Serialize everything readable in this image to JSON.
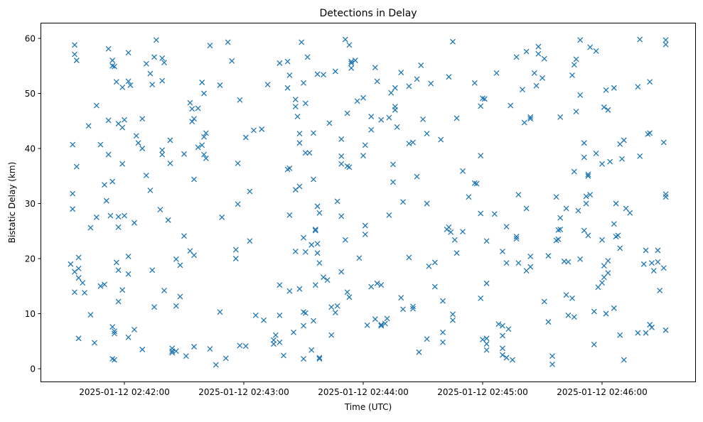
{
  "chart_data": {
    "type": "scatter",
    "title": "Detections in Delay",
    "xlabel": "Time (UTC)",
    "ylabel": "Bistatic Delay (km)",
    "x_units": "seconds relative to 2025-01-12 02:42:00",
    "xlim": [
      -42,
      287
    ],
    "ylim": [
      -2.5,
      62.5
    ],
    "grid": false,
    "marker": "x",
    "color": "#1f77b4",
    "xticks": [
      {
        "value": 0,
        "label": "2025-01-12 02:42:00"
      },
      {
        "value": 60,
        "label": "2025-01-12 02:43:00"
      },
      {
        "value": 120,
        "label": "2025-01-12 02:44:00"
      },
      {
        "value": 180,
        "label": "2025-01-12 02:45:00"
      },
      {
        "value": 240,
        "label": "2025-01-12 02:46:00"
      }
    ],
    "yticks": [
      {
        "value": 0,
        "label": "0"
      },
      {
        "value": 10,
        "label": "10"
      },
      {
        "value": 20,
        "label": "20"
      },
      {
        "value": 30,
        "label": "30"
      },
      {
        "value": 40,
        "label": "40"
      },
      {
        "value": 50,
        "label": "50"
      },
      {
        "value": 60,
        "label": "60"
      }
    ],
    "points": [
      [
        -27,
        19.0
      ],
      [
        -26,
        40.7
      ],
      [
        -26,
        31.8
      ],
      [
        -26,
        29.0
      ],
      [
        -25,
        57.1
      ],
      [
        -25,
        58.8
      ],
      [
        -25,
        17.6
      ],
      [
        -25,
        13.9
      ],
      [
        -24,
        56.0
      ],
      [
        -24,
        36.7
      ],
      [
        -23,
        16.5
      ],
      [
        -23,
        5.5
      ],
      [
        -23,
        20.2
      ],
      [
        -23,
        18.2
      ],
      [
        -21,
        15.6
      ],
      [
        -20,
        13.8
      ],
      [
        -18,
        44.1
      ],
      [
        -17,
        25.6
      ],
      [
        -17,
        9.8
      ],
      [
        -15,
        4.7
      ],
      [
        -14,
        47.8
      ],
      [
        -14,
        27.5
      ],
      [
        -12,
        40.7
      ],
      [
        -12,
        15.0
      ],
      [
        -10,
        15.3
      ],
      [
        -10,
        33.4
      ],
      [
        -9,
        30.5
      ],
      [
        -8,
        58.1
      ],
      [
        -8,
        45.1
      ],
      [
        -8,
        38.9
      ],
      [
        -7,
        27.8
      ],
      [
        -6,
        1.8
      ],
      [
        -6,
        56.0
      ],
      [
        -6,
        55.0
      ],
      [
        -6,
        34.0
      ],
      [
        -6,
        7.6
      ],
      [
        -5,
        54.9
      ],
      [
        -5,
        6.4
      ],
      [
        -5,
        1.6
      ],
      [
        -5,
        6.8
      ],
      [
        -4,
        19.3
      ],
      [
        -4,
        52.1
      ],
      [
        -3,
        44.5
      ],
      [
        -3,
        27.6
      ],
      [
        -3,
        25.7
      ],
      [
        -3,
        17.9
      ],
      [
        -3,
        12.2
      ],
      [
        -1,
        51.1
      ],
      [
        -1,
        43.8
      ],
      [
        -1,
        37.2
      ],
      [
        -1,
        14.3
      ],
      [
        0,
        45.2
      ],
      [
        0,
        27.8
      ],
      [
        2,
        57.4
      ],
      [
        2,
        52.2
      ],
      [
        2,
        5.7
      ],
      [
        2,
        17.2
      ],
      [
        2,
        20.4
      ],
      [
        3,
        51.5
      ],
      [
        5,
        26.5
      ],
      [
        5,
        7.1
      ],
      [
        6,
        42.3
      ],
      [
        7,
        41.0
      ],
      [
        9,
        45.4
      ],
      [
        9,
        40.0
      ],
      [
        9,
        3.5
      ],
      [
        11,
        55.4
      ],
      [
        11,
        35.1
      ],
      [
        13,
        53.6
      ],
      [
        13,
        32.4
      ],
      [
        14,
        51.6
      ],
      [
        14,
        17.9
      ],
      [
        15,
        56.6
      ],
      [
        15,
        11.2
      ],
      [
        16,
        59.7
      ],
      [
        18,
        28.9
      ],
      [
        19,
        52.3
      ],
      [
        19,
        38.9
      ],
      [
        19,
        56.4
      ],
      [
        19,
        39.7
      ],
      [
        20,
        55.6
      ],
      [
        20,
        14.2
      ],
      [
        22,
        27.0
      ],
      [
        23,
        37.3
      ],
      [
        23,
        41.5
      ],
      [
        24,
        3.2
      ],
      [
        24,
        3.7
      ],
      [
        24,
        2.9
      ],
      [
        26,
        19.9
      ],
      [
        26,
        11.4
      ],
      [
        26,
        3.2
      ],
      [
        28,
        13.1
      ],
      [
        28,
        18.8
      ],
      [
        30,
        39.0
      ],
      [
        30,
        24.1
      ],
      [
        31,
        2.3
      ],
      [
        33,
        21.4
      ],
      [
        33,
        48.3
      ],
      [
        34,
        44.9
      ],
      [
        34,
        47.2
      ],
      [
        35,
        45.4
      ],
      [
        35,
        20.6
      ],
      [
        35,
        34.4
      ],
      [
        35,
        4.0
      ],
      [
        37,
        47.3
      ],
      [
        37,
        40.2
      ],
      [
        39,
        52.0
      ],
      [
        39,
        40.6
      ],
      [
        40,
        50.0
      ],
      [
        40,
        38.9
      ],
      [
        40,
        42.1
      ],
      [
        41,
        42.8
      ],
      [
        41,
        38.2
      ],
      [
        43,
        58.7
      ],
      [
        43,
        3.6
      ],
      [
        46,
        0.7
      ],
      [
        48,
        51.5
      ],
      [
        48,
        10.3
      ],
      [
        49,
        27.5
      ],
      [
        51,
        1.9
      ],
      [
        52,
        59.3
      ],
      [
        54,
        55.9
      ],
      [
        56,
        21.6
      ],
      [
        56,
        20.0
      ],
      [
        57,
        29.9
      ],
      [
        57,
        37.3
      ],
      [
        58,
        48.8
      ],
      [
        58,
        4.2
      ],
      [
        61,
        4.1
      ],
      [
        61,
        42.0
      ],
      [
        63,
        32.2
      ],
      [
        63,
        23.2
      ],
      [
        65,
        43.3
      ],
      [
        66,
        9.7
      ],
      [
        69,
        43.5
      ],
      [
        70,
        8.8
      ],
      [
        72,
        51.6
      ],
      [
        75,
        4.5
      ],
      [
        75,
        5.2
      ],
      [
        76,
        6.1
      ],
      [
        78,
        55.5
      ],
      [
        78,
        15.2
      ],
      [
        78,
        9.7
      ],
      [
        78,
        4.8
      ],
      [
        80,
        2.4
      ],
      [
        82,
        55.8
      ],
      [
        82,
        51.0
      ],
      [
        82,
        36.2
      ],
      [
        83,
        36.4
      ],
      [
        83,
        14.1
      ],
      [
        83,
        27.9
      ],
      [
        83,
        53.3
      ],
      [
        85,
        6.6
      ],
      [
        86,
        47.6
      ],
      [
        86,
        48.9
      ],
      [
        86,
        21.3
      ],
      [
        86,
        32.5
      ],
      [
        87,
        45.8
      ],
      [
        88,
        41.0
      ],
      [
        88,
        42.7
      ],
      [
        88,
        33.1
      ],
      [
        88,
        14.5
      ],
      [
        89,
        59.3
      ],
      [
        90,
        51.9
      ],
      [
        90,
        23.8
      ],
      [
        90,
        10.3
      ],
      [
        90,
        7.8
      ],
      [
        90,
        1.8
      ],
      [
        91,
        48.2
      ],
      [
        91,
        39.2
      ],
      [
        91,
        21.2
      ],
      [
        91,
        10.1
      ],
      [
        92,
        56.6
      ],
      [
        93,
        39.2
      ],
      [
        94,
        3.4
      ],
      [
        94,
        22.5
      ],
      [
        95,
        42.8
      ],
      [
        95,
        34.4
      ],
      [
        95,
        8.7
      ],
      [
        96,
        25.3
      ],
      [
        96,
        25.1
      ],
      [
        96,
        15.2
      ],
      [
        97,
        53.5
      ],
      [
        97,
        22.7
      ],
      [
        97,
        21.0
      ],
      [
        97,
        29.5
      ],
      [
        98,
        2.0
      ],
      [
        98,
        1.8
      ],
      [
        98,
        28.3
      ],
      [
        98,
        19.2
      ],
      [
        100,
        53.4
      ],
      [
        100,
        16.6
      ],
      [
        102,
        16.1
      ],
      [
        103,
        44.6
      ],
      [
        104,
        6.1
      ],
      [
        104,
        11.2
      ],
      [
        106,
        54.0
      ],
      [
        106,
        10.2
      ],
      [
        107,
        30.4
      ],
      [
        107,
        11.4
      ],
      [
        109,
        17.6
      ],
      [
        109,
        38.6
      ],
      [
        109,
        37.2
      ],
      [
        109,
        41.7
      ],
      [
        109,
        27.7
      ],
      [
        111,
        23.4
      ],
      [
        111,
        59.8
      ],
      [
        112,
        46.4
      ],
      [
        112,
        13.9
      ],
      [
        112,
        36.8
      ],
      [
        113,
        36.6
      ],
      [
        113,
        58.8
      ],
      [
        113,
        13.0
      ],
      [
        114,
        55.5
      ],
      [
        114,
        54.6
      ],
      [
        114,
        55.8
      ],
      [
        116,
        56.0
      ],
      [
        117,
        48.6
      ],
      [
        118,
        20.1
      ],
      [
        120,
        38.7
      ],
      [
        120,
        49.2
      ],
      [
        121,
        24.4
      ],
      [
        121,
        26.0
      ],
      [
        121,
        40.6
      ],
      [
        122,
        7.9
      ],
      [
        124,
        45.8
      ],
      [
        124,
        43.4
      ],
      [
        124,
        14.9
      ],
      [
        126,
        54.7
      ],
      [
        126,
        9.0
      ],
      [
        127,
        52.2
      ],
      [
        127,
        15.5
      ],
      [
        129,
        7.8
      ],
      [
        129,
        8.0
      ],
      [
        129,
        15.2
      ],
      [
        129,
        45.2
      ],
      [
        131,
        8.2
      ],
      [
        132,
        9.1
      ],
      [
        133,
        27.9
      ],
      [
        133,
        45.6
      ],
      [
        134,
        50.1
      ],
      [
        135,
        33.9
      ],
      [
        135,
        37.1
      ],
      [
        136,
        51.0
      ],
      [
        136,
        47.6
      ],
      [
        136,
        47.0
      ],
      [
        137,
        43.9
      ],
      [
        139,
        12.9
      ],
      [
        139,
        53.8
      ],
      [
        140,
        30.3
      ],
      [
        140,
        10.8
      ],
      [
        143,
        51.3
      ],
      [
        143,
        40.9
      ],
      [
        143,
        20.2
      ],
      [
        145,
        41.1
      ],
      [
        145,
        11.3
      ],
      [
        145,
        10.9
      ],
      [
        147,
        52.6
      ],
      [
        147,
        34.9
      ],
      [
        148,
        3.0
      ],
      [
        149,
        55.1
      ],
      [
        150,
        45.3
      ],
      [
        152,
        42.7
      ],
      [
        152,
        30.0
      ],
      [
        152,
        5.4
      ],
      [
        153,
        18.6
      ],
      [
        154,
        51.8
      ],
      [
        156,
        19.3
      ],
      [
        156,
        14.9
      ],
      [
        159,
        41.6
      ],
      [
        160,
        6.6
      ],
      [
        160,
        4.8
      ],
      [
        160,
        12.3
      ],
      [
        162,
        25.3
      ],
      [
        163,
        53.0
      ],
      [
        163,
        25.7
      ],
      [
        164,
        24.8
      ],
      [
        165,
        59.4
      ],
      [
        165,
        9.9
      ],
      [
        165,
        8.8
      ],
      [
        166,
        23.4
      ],
      [
        167,
        21.0
      ],
      [
        167,
        45.5
      ],
      [
        170,
        35.9
      ],
      [
        170,
        24.9
      ],
      [
        173,
        31.2
      ],
      [
        176,
        51.9
      ],
      [
        176,
        33.7
      ],
      [
        177,
        33.6
      ],
      [
        179,
        12.8
      ],
      [
        179,
        47.7
      ],
      [
        179,
        38.7
      ],
      [
        179,
        28.2
      ],
      [
        180,
        49.1
      ],
      [
        180,
        5.3
      ],
      [
        181,
        49.0
      ],
      [
        182,
        15.5
      ],
      [
        182,
        23.2
      ],
      [
        182,
        5.5
      ],
      [
        182,
        4.5
      ],
      [
        182,
        3.4
      ],
      [
        186,
        28.1
      ],
      [
        187,
        53.7
      ],
      [
        188,
        8.1
      ],
      [
        190,
        2.5
      ],
      [
        190,
        21.3
      ],
      [
        190,
        6.0
      ],
      [
        190,
        7.8
      ],
      [
        190,
        3.7
      ],
      [
        192,
        25.8
      ],
      [
        192,
        19.2
      ],
      [
        192,
        2.0
      ],
      [
        193,
        7.2
      ],
      [
        194,
        47.8
      ],
      [
        195,
        1.6
      ],
      [
        197,
        56.6
      ],
      [
        197,
        24.0
      ],
      [
        197,
        23.6
      ],
      [
        198,
        31.6
      ],
      [
        198,
        19.2
      ],
      [
        200,
        50.7
      ],
      [
        201,
        44.7
      ],
      [
        202,
        57.6
      ],
      [
        202,
        29.1
      ],
      [
        202,
        17.8
      ],
      [
        204,
        45.7
      ],
      [
        204,
        18.5
      ],
      [
        204,
        45.4
      ],
      [
        204,
        20.4
      ],
      [
        206,
        53.7
      ],
      [
        207,
        51.4
      ],
      [
        208,
        58.5
      ],
      [
        208,
        57.2
      ],
      [
        210,
        52.8
      ],
      [
        211,
        56.3
      ],
      [
        211,
        12.2
      ],
      [
        213,
        20.5
      ],
      [
        213,
        8.5
      ],
      [
        215,
        2.3
      ],
      [
        215,
        0.8
      ],
      [
        217,
        23.3
      ],
      [
        217,
        31.2
      ],
      [
        218,
        23.5
      ],
      [
        218,
        25.2
      ],
      [
        219,
        27.4
      ],
      [
        219,
        25.3
      ],
      [
        219,
        45.7
      ],
      [
        221,
        19.5
      ],
      [
        222,
        29.1
      ],
      [
        222,
        13.4
      ],
      [
        223,
        19.4
      ],
      [
        223,
        9.7
      ],
      [
        225,
        53.3
      ],
      [
        225,
        12.8
      ],
      [
        226,
        35.8
      ],
      [
        226,
        9.4
      ],
      [
        226,
        55.2
      ],
      [
        227,
        46.7
      ],
      [
        227,
        56.2
      ],
      [
        228,
        28.7
      ],
      [
        229,
        59.7
      ],
      [
        229,
        49.7
      ],
      [
        229,
        19.9
      ],
      [
        231,
        38.4
      ],
      [
        231,
        41.0
      ],
      [
        231,
        25.1
      ],
      [
        232,
        31.3
      ],
      [
        232,
        30.0
      ],
      [
        233,
        35.3
      ],
      [
        233,
        24.2
      ],
      [
        233,
        35.0
      ],
      [
        234,
        58.4
      ],
      [
        234,
        31.6
      ],
      [
        236,
        10.4
      ],
      [
        236,
        4.4
      ],
      [
        237,
        39.1
      ],
      [
        237,
        57.7
      ],
      [
        238,
        14.8
      ],
      [
        240,
        23.4
      ],
      [
        240,
        15.6
      ],
      [
        240,
        37.2
      ],
      [
        241,
        16.6
      ],
      [
        241,
        47.5
      ],
      [
        241,
        18.7
      ],
      [
        242,
        10.0
      ],
      [
        242,
        50.6
      ],
      [
        243,
        47.0
      ],
      [
        243,
        19.6
      ],
      [
        243,
        17.4
      ],
      [
        244,
        37.6
      ],
      [
        246,
        11.0
      ],
      [
        246,
        26.3
      ],
      [
        246,
        51.0
      ],
      [
        247,
        30.0
      ],
      [
        247,
        24.0
      ],
      [
        248,
        24.2
      ],
      [
        249,
        6.1
      ],
      [
        249,
        40.8
      ],
      [
        249,
        21.9
      ],
      [
        250,
        38.1
      ],
      [
        251,
        41.5
      ],
      [
        251,
        1.6
      ],
      [
        252,
        29.1
      ],
      [
        254,
        28.3
      ],
      [
        258,
        51.2
      ],
      [
        258,
        6.5
      ],
      [
        259,
        59.8
      ],
      [
        259,
        38.6
      ],
      [
        261,
        19.0
      ],
      [
        262,
        21.5
      ],
      [
        262,
        6.5
      ],
      [
        263,
        42.6
      ],
      [
        264,
        42.8
      ],
      [
        264,
        52.1
      ],
      [
        264,
        8.0
      ],
      [
        265,
        7.5
      ],
      [
        265,
        19.2
      ],
      [
        266,
        17.8
      ],
      [
        268,
        21.5
      ],
      [
        268,
        19.4
      ],
      [
        269,
        14.2
      ],
      [
        271,
        41.1
      ],
      [
        271,
        18.3
      ],
      [
        272,
        59.7
      ],
      [
        272,
        58.9
      ],
      [
        272,
        31.7
      ],
      [
        272,
        31.2
      ],
      [
        272,
        7.0
      ]
    ]
  }
}
